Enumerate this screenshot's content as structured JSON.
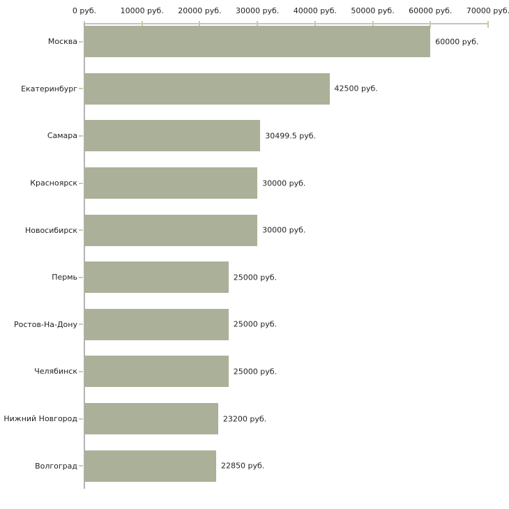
{
  "colors": {
    "bar_fill": "#abb198",
    "axis_line": "#c3c3c3",
    "y_axis_line": "#b3b3b3",
    "tick_mark": "#c9cca6",
    "text": "#1f1f1f",
    "background": "#ffffff"
  },
  "chart_data": {
    "type": "bar",
    "orientation": "horizontal",
    "title": "",
    "xlabel": "",
    "ylabel": "",
    "unit": "руб.",
    "xlim": [
      0,
      70000
    ],
    "grid": false,
    "axis_position": "top",
    "categories": [
      "Москва",
      "Екатеринбург",
      "Самара",
      "Красноярск",
      "Новосибирск",
      "Пермь",
      "Ростов-На-Дону",
      "Челябинск",
      "Нижний Новгород",
      "Волгоград"
    ],
    "values": [
      60000,
      42500,
      30499.5,
      30000,
      30000,
      25000,
      25000,
      25000,
      23200,
      22850
    ],
    "value_labels": [
      "60000 руб.",
      "42500 руб.",
      "30499.5 руб.",
      "30000 руб.",
      "30000 руб.",
      "25000 руб.",
      "25000 руб.",
      "25000 руб.",
      "23200 руб.",
      "22850 руб."
    ],
    "x_ticks": [
      0,
      10000,
      20000,
      30000,
      40000,
      50000,
      60000,
      70000
    ],
    "x_tick_labels": [
      "0 руб.",
      "10000 руб.",
      "20000 руб.",
      "30000 руб.",
      "40000 руб.",
      "50000 руб.",
      "60000 руб.",
      "70000 руб."
    ]
  }
}
